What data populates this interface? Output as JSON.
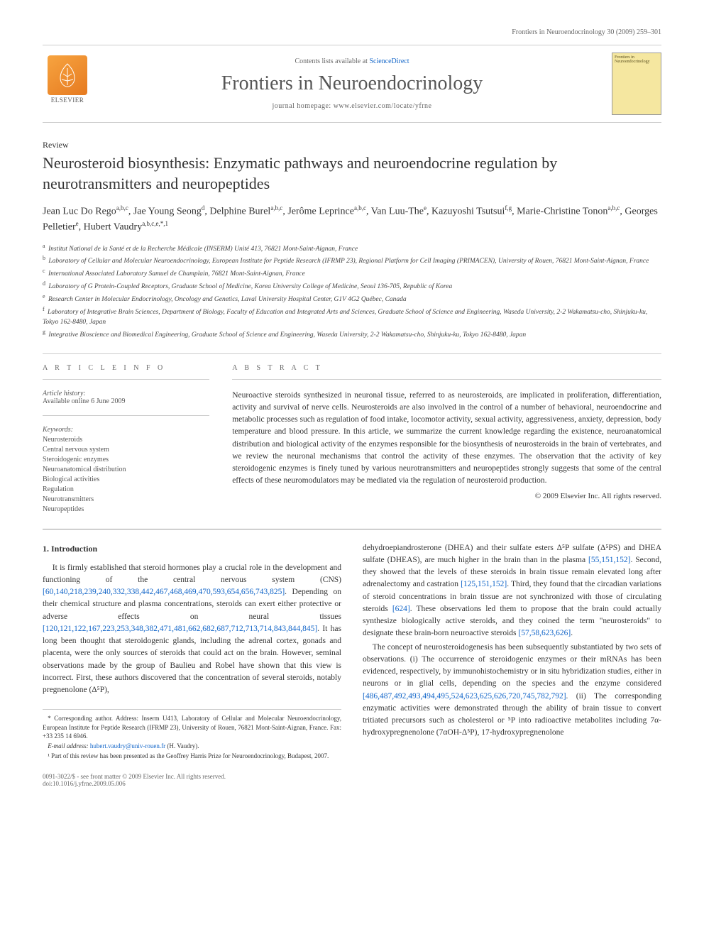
{
  "running_head": "Frontiers in Neuroendocrinology 30 (2009) 259–301",
  "masthead": {
    "contents_prefix": "Contents lists available at ",
    "contents_link": "ScienceDirect",
    "journal": "Frontiers in Neuroendocrinology",
    "homepage_prefix": "journal homepage: ",
    "homepage": "www.elsevier.com/locate/yfrne",
    "elsevier": "ELSEVIER",
    "cover_text": "Frontiers in Neuroendocrinology"
  },
  "article_type": "Review",
  "title": "Neurosteroid biosynthesis: Enzymatic pathways and neuroendocrine regulation by neurotransmitters and neuropeptides",
  "authors_html": "Jean Luc Do Rego<sup>a,b,c</sup>, Jae Young Seong<sup>d</sup>, Delphine Burel<sup>a,b,c</sup>, Jerôme Leprince<sup>a,b,c</sup>, Van Luu-The<sup>e</sup>, Kazuyoshi Tsutsui<sup>f,g</sup>, Marie-Christine Tonon<sup>a,b,c</sup>, Georges Pelletier<sup>e</sup>, Hubert Vaudry<sup>a,b,c,e,*,1</sup>",
  "affiliations": [
    {
      "sup": "a",
      "text": "Institut National de la Santé et de la Recherche Médicale (INSERM) Unité 413, 76821 Mont-Saint-Aignan, France"
    },
    {
      "sup": "b",
      "text": "Laboratory of Cellular and Molecular Neuroendocrinology, European Institute for Peptide Research (IFRMP 23), Regional Platform for Cell Imaging (PRIMACEN), University of Rouen, 76821 Mont-Saint-Aignan, France"
    },
    {
      "sup": "c",
      "text": "International Associated Laboratory Samuel de Champlain, 76821 Mont-Saint-Aignan, France"
    },
    {
      "sup": "d",
      "text": "Laboratory of G Protein-Coupled Receptors, Graduate School of Medicine, Korea University College of Medicine, Seoul 136-705, Republic of Korea"
    },
    {
      "sup": "e",
      "text": "Research Center in Molecular Endocrinology, Oncology and Genetics, Laval University Hospital Center, G1V 4G2 Québec, Canada"
    },
    {
      "sup": "f",
      "text": "Laboratory of Integrative Brain Sciences, Department of Biology, Faculty of Education and Integrated Arts and Sciences, Graduate School of Science and Engineering, Waseda University, 2-2 Wakamatsu-cho, Shinjuku-ku, Tokyo 162-8480, Japan"
    },
    {
      "sup": "g",
      "text": "Integrative Bioscience and Biomedical Engineering, Graduate School of Science and Engineering, Waseda University, 2-2 Wakamatsu-cho, Shinjuku-ku, Tokyo 162-8480, Japan"
    }
  ],
  "info": {
    "section_label": "A R T I C L E   I N F O",
    "history_label": "Article history:",
    "history": "Available online 6 June 2009",
    "kw_label": "Keywords:",
    "keywords": [
      "Neurosteroids",
      "Central nervous system",
      "Steroidogenic enzymes",
      "Neuroanatomical distribution",
      "Biological activities",
      "Regulation",
      "Neurotransmitters",
      "Neuropeptides"
    ]
  },
  "abstract": {
    "label": "A B S T R A C T",
    "text": "Neuroactive steroids synthesized in neuronal tissue, referred to as neurosteroids, are implicated in proliferation, differentiation, activity and survival of nerve cells. Neurosteroids are also involved in the control of a number of behavioral, neuroendocrine and metabolic processes such as regulation of food intake, locomotor activity, sexual activity, aggressiveness, anxiety, depression, body temperature and blood pressure. In this article, we summarize the current knowledge regarding the existence, neuroanatomical distribution and biological activity of the enzymes responsible for the biosynthesis of neurosteroids in the brain of vertebrates, and we review the neuronal mechanisms that control the activity of these enzymes. The observation that the activity of key steroidogenic enzymes is finely tuned by various neurotransmitters and neuropeptides strongly suggests that some of the central effects of these neuromodulators may be mediated via the regulation of neurosteroid production.",
    "copyright": "© 2009 Elsevier Inc. All rights reserved."
  },
  "body": {
    "section_title": "1. Introduction",
    "col1_p1_a": "It is firmly established that steroid hormones play a crucial role in the development and functioning of the central nervous system (CNS) ",
    "col1_refs1": "[60,140,218,239,240,332,338,442,467,468,469,470,593,654,656,743,825]",
    "col1_p1_b": ". Depending on their chemical structure and plasma concentrations, steroids can exert either protective or adverse effects on neural tissues ",
    "col1_refs2": "[120,121,122,167,223,253,348,382,471,481,662,682,687,712,713,714,843,844,845]",
    "col1_p1_c": ". It has long been thought that steroidogenic glands, including the adrenal cortex, gonads and placenta, were the only sources of steroids that could act on the brain. However, seminal observations made by the group of Baulieu and Robel have shown that this view is incorrect. First, these authors discovered that the concentration of several steroids, notably pregnenolone (Δ⁵P),",
    "col2_p1_a": "dehydroepiandrosterone (DHEA) and their sulfate esters Δ⁵P sulfate (Δ⁵PS) and DHEA sulfate (DHEAS), are much higher in the brain than in the plasma ",
    "col2_refs1": "[55,151,152]",
    "col2_p1_b": ". Second, they showed that the levels of these steroids in brain tissue remain elevated long after adrenalectomy and castration ",
    "col2_refs2": "[125,151,152]",
    "col2_p1_c": ". Third, they found that the circadian variations of steroid concentrations in brain tissue are not synchronized with those of circulating steroids ",
    "col2_refs3": "[624]",
    "col2_p1_d": ". These observations led them to propose that the brain could actually synthesize biologically active steroids, and they coined the term \"neurosteroids\" to designate these brain-born neuroactive steroids ",
    "col2_refs4": "[57,58,623,626]",
    "col2_p1_e": ".",
    "col2_p2_a": "The concept of neurosteroidogenesis has been subsequently substantiated by two sets of observations. (i) The occurrence of steroidogenic enzymes or their mRNAs has been evidenced, respectively, by immunohistochemistry or in situ hybridization studies, either in neurons or in glial cells, depending on the species and the enzyme considered ",
    "col2_refs5": "[486,487,492,493,494,495,524,623,625,626,720,745,782,792]",
    "col2_p2_b": ". (ii) The corresponding enzymatic activities were demonstrated through the ability of brain tissue to convert tritiated precursors such as cholesterol or ⁵P into radioactive metabolites including 7α-hydroxypregnenolone (7αOH-Δ⁵P), 17-hydroxypregnenolone"
  },
  "footnotes": {
    "corr_label": "* Corresponding author. Address: Inserm U413, Laboratory of Cellular and Molecular Neuroendocrinology, European Institute for Peptide Research (IFRMP 23), University of Rouen, 76821 Mont-Saint-Aignan, France. Fax: +33 235 14 6946.",
    "email_label": "E-mail address:",
    "email": "hubert.vaudry@univ-rouen.fr",
    "email_suffix": "(H. Vaudry).",
    "note1": "¹ Part of this review has been presented as the Geoffrey Harris Prize for Neuroendocrinology, Budapest, 2007."
  },
  "footer": {
    "line1": "0091-3022/$ - see front matter © 2009 Elsevier Inc. All rights reserved.",
    "line2": "doi:10.1016/j.yfrne.2009.05.006"
  },
  "colors": {
    "link": "#1064c8",
    "text": "#333333",
    "muted": "#666666",
    "rule": "#cccccc",
    "elsevier_orange": "#e67a20"
  }
}
